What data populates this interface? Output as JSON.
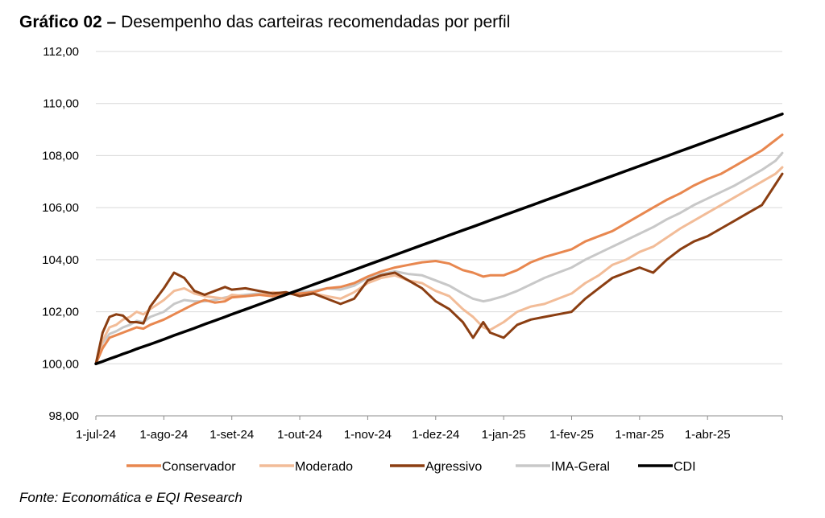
{
  "header": {
    "title_bold": "Gráfico 02 –",
    "title_rest": " Desempenho das carteiras recomendadas por perfil"
  },
  "footer": {
    "source": "Fonte: Economática e EQI Research"
  },
  "chart_data": {
    "type": "line",
    "title": "Desempenho das carteiras recomendadas por perfil",
    "xlabel": "",
    "ylabel": "",
    "ylim": [
      98,
      112
    ],
    "yticks": [
      98,
      100,
      102,
      104,
      106,
      108,
      110,
      112
    ],
    "ytick_labels": [
      "98,00",
      "100,00",
      "102,00",
      "104,00",
      "106,00",
      "108,00",
      "110,00",
      "112,00"
    ],
    "grid": true,
    "legend": "bottom",
    "x_range_months": [
      0,
      10.1
    ],
    "x_ticks": [
      {
        "label": "1-jul-24",
        "month": 0
      },
      {
        "label": "1-ago-24",
        "month": 1
      },
      {
        "label": "1-set-24",
        "month": 2
      },
      {
        "label": "1-out-24",
        "month": 3
      },
      {
        "label": "1-nov-24",
        "month": 4
      },
      {
        "label": "1-dez-24",
        "month": 5
      },
      {
        "label": "1-jan-25",
        "month": 6
      },
      {
        "label": "1-fev-25",
        "month": 7
      },
      {
        "label": "1-mar-25",
        "month": 8
      },
      {
        "label": "1-abr-25",
        "month": 9
      }
    ],
    "x": [
      0,
      0.1,
      0.2,
      0.3,
      0.4,
      0.5,
      0.6,
      0.7,
      0.8,
      1.0,
      1.15,
      1.3,
      1.45,
      1.6,
      1.75,
      1.9,
      2.0,
      2.2,
      2.4,
      2.6,
      2.8,
      3.0,
      3.2,
      3.4,
      3.6,
      3.8,
      4.0,
      4.2,
      4.4,
      4.6,
      4.8,
      5.0,
      5.2,
      5.4,
      5.55,
      5.7,
      5.8,
      6.0,
      6.2,
      6.4,
      6.6,
      6.8,
      7.0,
      7.2,
      7.4,
      7.6,
      7.8,
      8.0,
      8.2,
      8.4,
      8.6,
      8.8,
      9.0,
      9.2,
      9.4,
      9.6,
      9.8,
      10.0,
      10.1
    ],
    "series": [
      {
        "name": "Conservador",
        "color": "#e8874f",
        "values": [
          100.0,
          100.6,
          101.0,
          101.1,
          101.2,
          101.3,
          101.4,
          101.35,
          101.5,
          101.7,
          101.9,
          102.1,
          102.3,
          102.45,
          102.35,
          102.4,
          102.55,
          102.6,
          102.65,
          102.6,
          102.7,
          102.7,
          102.75,
          102.9,
          102.95,
          103.1,
          103.35,
          103.55,
          103.7,
          103.8,
          103.9,
          103.95,
          103.85,
          103.6,
          103.5,
          103.35,
          103.4,
          103.4,
          103.6,
          103.9,
          104.1,
          104.25,
          104.4,
          104.7,
          104.9,
          105.1,
          105.4,
          105.7,
          106.0,
          106.3,
          106.55,
          106.85,
          107.1,
          107.3,
          107.6,
          107.9,
          108.2,
          108.6,
          108.8
        ]
      },
      {
        "name": "Moderado",
        "color": "#f2bc98",
        "values": [
          100.0,
          100.9,
          101.4,
          101.5,
          101.7,
          101.8,
          102.0,
          101.9,
          102.1,
          102.45,
          102.8,
          102.9,
          102.7,
          102.6,
          102.55,
          102.5,
          102.65,
          102.6,
          102.65,
          102.75,
          102.7,
          102.65,
          102.7,
          102.6,
          102.5,
          102.75,
          103.1,
          103.3,
          103.4,
          103.2,
          103.1,
          102.8,
          102.6,
          102.1,
          101.8,
          101.4,
          101.3,
          101.6,
          102.0,
          102.2,
          102.3,
          102.5,
          102.7,
          103.1,
          103.4,
          103.8,
          104.0,
          104.3,
          104.5,
          104.85,
          105.2,
          105.5,
          105.8,
          106.1,
          106.4,
          106.7,
          107.0,
          107.3,
          107.55
        ]
      },
      {
        "name": "Agressivo",
        "color": "#8b3e12",
        "values": [
          100.0,
          101.2,
          101.8,
          101.9,
          101.85,
          101.6,
          101.6,
          101.55,
          102.2,
          102.9,
          103.5,
          103.3,
          102.8,
          102.65,
          102.8,
          102.95,
          102.85,
          102.9,
          102.8,
          102.7,
          102.75,
          102.6,
          102.7,
          102.5,
          102.3,
          102.5,
          103.2,
          103.4,
          103.5,
          103.2,
          102.9,
          102.4,
          102.1,
          101.6,
          101.0,
          101.6,
          101.2,
          101.0,
          101.5,
          101.7,
          101.8,
          101.9,
          102.0,
          102.5,
          102.9,
          103.3,
          103.5,
          103.7,
          103.5,
          104.0,
          104.4,
          104.7,
          104.9,
          105.2,
          105.5,
          105.8,
          106.1,
          106.9,
          107.3
        ]
      },
      {
        "name": "IMA-Geral",
        "color": "#c8c8c8",
        "values": [
          100.0,
          100.8,
          101.15,
          101.25,
          101.4,
          101.5,
          101.65,
          101.6,
          101.8,
          102.0,
          102.3,
          102.45,
          102.4,
          102.4,
          102.45,
          102.55,
          102.6,
          102.65,
          102.7,
          102.6,
          102.7,
          102.75,
          102.8,
          102.9,
          102.85,
          103.0,
          103.3,
          103.45,
          103.55,
          103.45,
          103.4,
          103.2,
          103.0,
          102.7,
          102.5,
          102.4,
          102.45,
          102.6,
          102.8,
          103.05,
          103.3,
          103.5,
          103.7,
          104.0,
          104.25,
          104.5,
          104.75,
          105.0,
          105.25,
          105.55,
          105.8,
          106.1,
          106.35,
          106.6,
          106.85,
          107.15,
          107.45,
          107.8,
          108.1
        ]
      },
      {
        "name": "CDI",
        "color": "#000000",
        "values": [
          100.0,
          100.09,
          100.19,
          100.28,
          100.38,
          100.47,
          100.57,
          100.66,
          100.75,
          100.94,
          101.09,
          101.23,
          101.37,
          101.52,
          101.66,
          101.8,
          101.9,
          102.09,
          102.28,
          102.47,
          102.66,
          102.85,
          103.04,
          103.23,
          103.42,
          103.61,
          103.8,
          103.99,
          104.18,
          104.37,
          104.56,
          104.75,
          104.94,
          105.13,
          105.27,
          105.41,
          105.51,
          105.7,
          105.89,
          106.08,
          106.27,
          106.46,
          106.65,
          106.84,
          107.03,
          107.22,
          107.41,
          107.6,
          107.79,
          107.98,
          108.17,
          108.36,
          108.55,
          108.74,
          108.93,
          109.12,
          109.31,
          109.5,
          109.6
        ]
      }
    ]
  }
}
